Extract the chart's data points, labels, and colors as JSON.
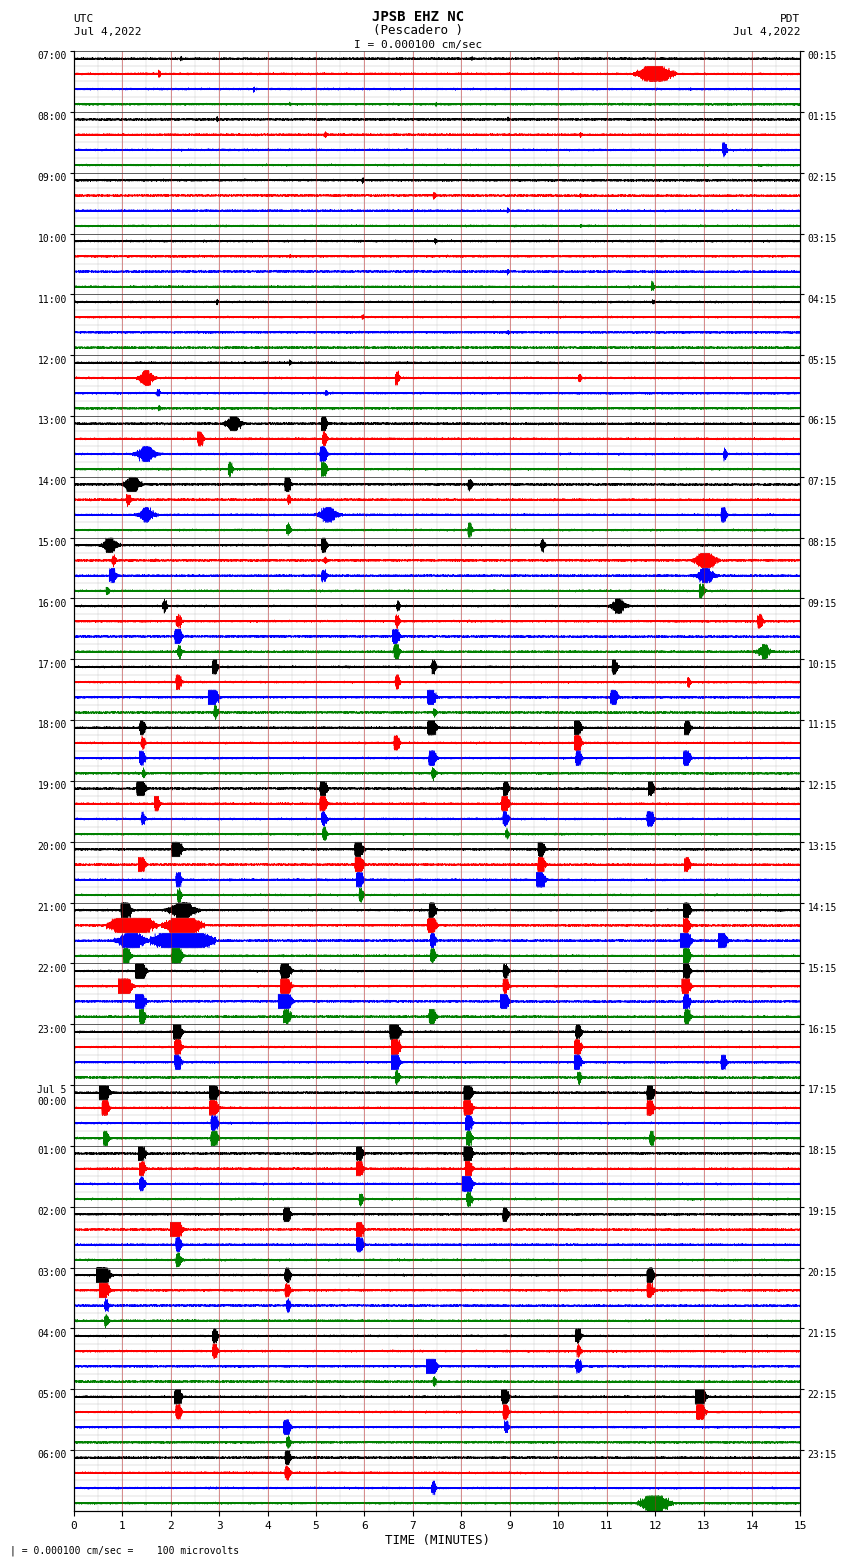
{
  "title_line1": "JPSB EHZ NC",
  "title_line2": "(Pescadero )",
  "title_line3": "I = 0.000100 cm/sec",
  "label_utc": "UTC",
  "label_date_left": "Jul 4,2022",
  "label_pdt": "PDT",
  "label_date_right": "Jul 4,2022",
  "xlabel": "TIME (MINUTES)",
  "footer": "| = 0.000100 cm/sec =    100 microvolts",
  "left_times": [
    "07:00",
    "08:00",
    "09:00",
    "10:00",
    "11:00",
    "12:00",
    "13:00",
    "14:00",
    "15:00",
    "16:00",
    "17:00",
    "18:00",
    "19:00",
    "20:00",
    "21:00",
    "22:00",
    "23:00",
    "Jul 5\n00:00",
    "01:00",
    "02:00",
    "03:00",
    "04:00",
    "05:00",
    "06:00"
  ],
  "right_times": [
    "00:15",
    "01:15",
    "02:15",
    "03:15",
    "04:15",
    "05:15",
    "06:15",
    "07:15",
    "08:15",
    "09:15",
    "10:15",
    "11:15",
    "12:15",
    "13:15",
    "14:15",
    "15:15",
    "16:15",
    "17:15",
    "18:15",
    "19:15",
    "20:15",
    "21:15",
    "22:15",
    "23:15"
  ],
  "num_rows": 24,
  "minutes_per_row": 15,
  "traces_per_row": 4,
  "trace_colors": [
    "black",
    "red",
    "blue",
    "green"
  ],
  "grid_major_color": "#cc3333",
  "grid_minor_color": "#888888",
  "row_border_color": "#333333"
}
